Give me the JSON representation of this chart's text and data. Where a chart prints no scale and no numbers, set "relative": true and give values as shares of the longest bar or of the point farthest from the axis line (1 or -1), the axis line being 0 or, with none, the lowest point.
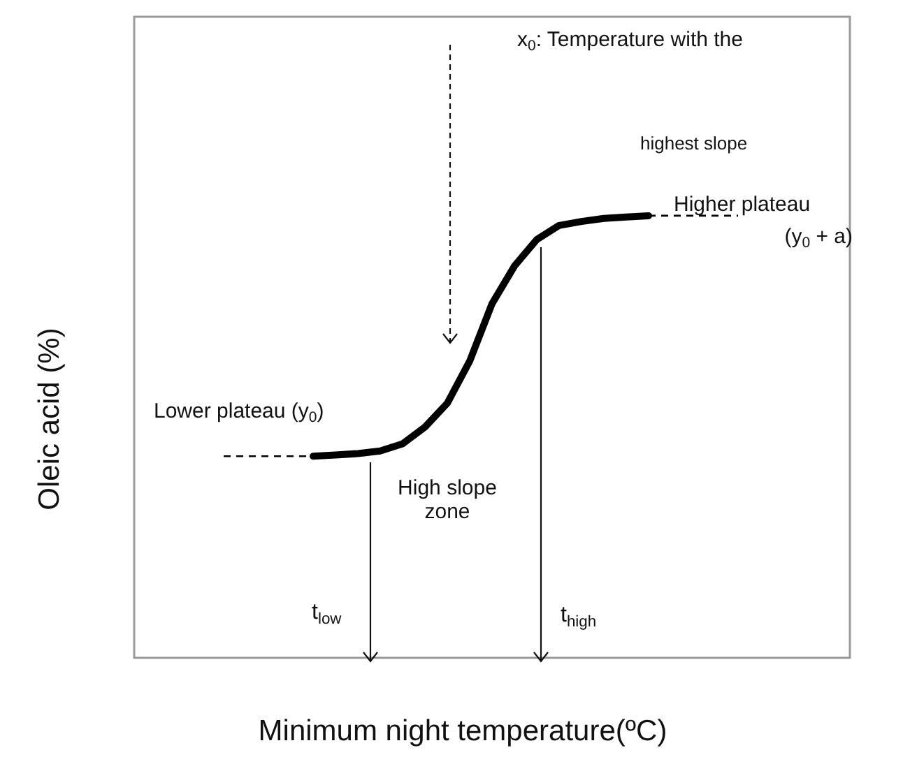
{
  "chart_data": {
    "type": "line",
    "relative": true,
    "xlabel": "Minimum night temperature(ºC)",
    "ylabel": "Oleic acid (%)",
    "categories": [
      null,
      null,
      null,
      null,
      null,
      null,
      null,
      null,
      null,
      null,
      null,
      null,
      null,
      null,
      null,
      null,
      null,
      null,
      null,
      null,
      null,
      null,
      null,
      null,
      null,
      null,
      null,
      null,
      null,
      null,
      null,
      null,
      null
    ],
    "series": [
      {
        "color": "#000000",
        "line_style": "dashed",
        "values": [
          null,
          null,
          null,
          null,
          0.456,
          0.456,
          0.456,
          0.456,
          0.456,
          null,
          null,
          null,
          null,
          null,
          null,
          null,
          null,
          null,
          null,
          null,
          null,
          null,
          null,
          null,
          null,
          null,
          null,
          null,
          null,
          null,
          null,
          null,
          null
        ]
      },
      {
        "color": "#000000",
        "line_style": "solid",
        "values": [
          null,
          null,
          null,
          null,
          null,
          null,
          null,
          null,
          0.456,
          0.459,
          0.462,
          0.468,
          0.484,
          0.522,
          0.576,
          0.671,
          0.801,
          0.886,
          0.946,
          0.978,
          0.987,
          0.994,
          0.997,
          1,
          null,
          null,
          null,
          null,
          null,
          null,
          null,
          null,
          null
        ]
      },
      {
        "color": "#000000",
        "line_style": "dashed",
        "values": [
          null,
          null,
          null,
          null,
          null,
          null,
          null,
          null,
          null,
          null,
          null,
          null,
          null,
          null,
          null,
          null,
          null,
          null,
          null,
          null,
          null,
          null,
          null,
          1,
          1,
          1,
          1,
          1,
          null,
          null,
          null,
          null,
          null
        ]
      }
    ],
    "annotations": [
      "x$_{0}$: Temperature with the",
      "highest slope",
      "Higher plateau",
      "(y$_{0}$ + a)",
      "Lower plateau (y$_{0}$)",
      "High slope zone",
      "t$_{low}$",
      "t$_{high}$"
    ],
    "legend": false,
    "marker": "none"
  }
}
